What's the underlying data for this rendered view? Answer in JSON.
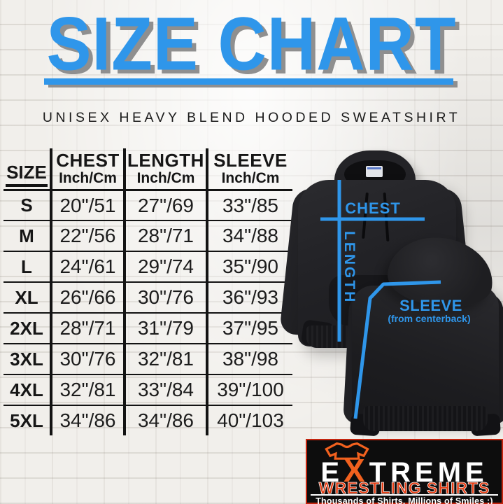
{
  "chart_data": {
    "type": "table",
    "title": "SIZE CHART",
    "subtitle": "UNISEX HEAVY BLEND HOODED SWEATSHIRT",
    "size_header": "SIZE",
    "unit_label": "Inch/Cm",
    "measure_columns": [
      "CHEST",
      "LENGTH",
      "SLEEVE"
    ],
    "rows": [
      [
        "S",
        "20\"/51",
        "27\"/69",
        "33\"/85"
      ],
      [
        "M",
        "22\"/56",
        "28\"/71",
        "34\"/88"
      ],
      [
        "L",
        "24\"/61",
        "29\"/74",
        "35\"/90"
      ],
      [
        "XL",
        "26\"/66",
        "30\"/76",
        "36\"/93"
      ],
      [
        "2XL",
        "28\"/71",
        "31\"/79",
        "37\"/95"
      ],
      [
        "3XL",
        "30\"/76",
        "32\"/81",
        "38\"/98"
      ],
      [
        "4XL",
        "32\"/81",
        "33\"/84",
        "39\"/100"
      ],
      [
        "5XL",
        "34\"/86",
        "34\"/86",
        "40\"/103"
      ]
    ]
  },
  "diagram": {
    "chest_label": "CHEST",
    "length_label": "LENGTH",
    "sleeve_label": "SLEEVE",
    "sleeve_sublabel": "(from centerback)"
  },
  "logo": {
    "brand_prefix": "E",
    "brand_x": "X",
    "brand_suffix": "TREME",
    "brand_line2": "WRESTLING SHIRTS",
    "tagline": "Thousands of Shirts. Millions of Smiles :)"
  },
  "colors": {
    "accent_blue": "#2f96ea",
    "title_shadow": "#8f8f8f",
    "table_line_black": "#131313",
    "logo_orange": "#f2611e",
    "logo_red": "#d61f0a"
  }
}
